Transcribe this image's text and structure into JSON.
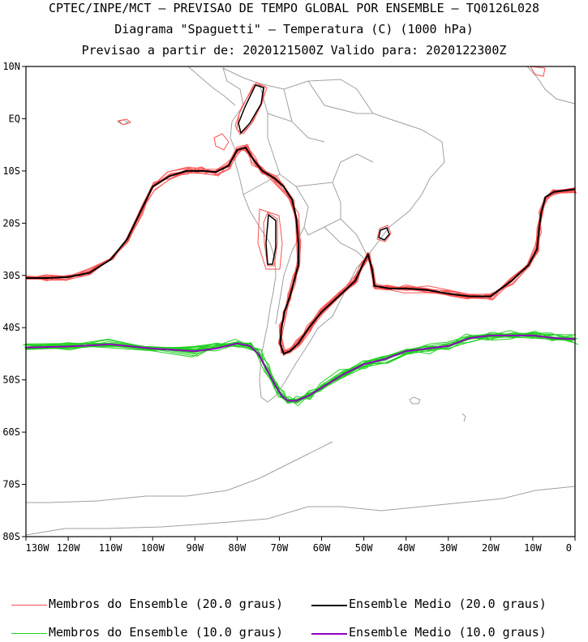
{
  "title_lines": [
    "CPTEC/INPE/MCT – PREVISAO DE TEMPO GLOBAL POR ENSEMBLE – TQ0126L028",
    "Diagrama \"Spaguetti\" – Temperatura (C) (1000 hPa)",
    "Previsao a partir de: 2020121500Z  Valido para: 2020122300Z"
  ],
  "chart_data": {
    "type": "line",
    "title": "Diagrama \"Spaguetti\" – Temperatura (C) (1000 hPa)",
    "xlabel": "",
    "ylabel": "",
    "xlim": [
      -130,
      0
    ],
    "ylim": [
      -80,
      10
    ],
    "x_ticks": [
      {
        "value": -130,
        "label": "130W"
      },
      {
        "value": -120,
        "label": "120W"
      },
      {
        "value": -110,
        "label": "110W"
      },
      {
        "value": -100,
        "label": "100W"
      },
      {
        "value": -90,
        "label": "90W"
      },
      {
        "value": -80,
        "label": "80W"
      },
      {
        "value": -70,
        "label": "70W"
      },
      {
        "value": -60,
        "label": "60W"
      },
      {
        "value": -50,
        "label": "50W"
      },
      {
        "value": -40,
        "label": "40W"
      },
      {
        "value": -30,
        "label": "30W"
      },
      {
        "value": -20,
        "label": "20W"
      },
      {
        "value": -10,
        "label": "10W"
      },
      {
        "value": 0,
        "label": "0"
      }
    ],
    "y_ticks": [
      {
        "value": 10,
        "label": "10N"
      },
      {
        "value": 0,
        "label": "EQ"
      },
      {
        "value": -10,
        "label": "10S"
      },
      {
        "value": -20,
        "label": "20S"
      },
      {
        "value": -30,
        "label": "30S"
      },
      {
        "value": -40,
        "label": "40S"
      },
      {
        "value": -50,
        "label": "50S"
      },
      {
        "value": -60,
        "label": "60S"
      },
      {
        "value": -70,
        "label": "70S"
      },
      {
        "value": -80,
        "label": "80S"
      }
    ],
    "series": [
      {
        "name": "Ensemble Medio (20.0 graus)",
        "color": "#000000",
        "points": [
          [
            -130,
            -30.5
          ],
          [
            -125,
            -30.5
          ],
          [
            -120,
            -30.3
          ],
          [
            -115,
            -29.5
          ],
          [
            -110,
            -27
          ],
          [
            -106,
            -23
          ],
          [
            -103,
            -18
          ],
          [
            -100,
            -13
          ],
          [
            -96,
            -11
          ],
          [
            -92,
            -10
          ],
          [
            -88,
            -10
          ],
          [
            -85,
            -10.2
          ],
          [
            -82,
            -9
          ],
          [
            -80,
            -6
          ],
          [
            -78,
            -5.5
          ],
          [
            -76,
            -8
          ],
          [
            -74,
            -10
          ],
          [
            -71,
            -11.5
          ],
          [
            -69,
            -13
          ],
          [
            -67,
            -15.5
          ],
          [
            -66,
            -19
          ],
          [
            -65.5,
            -24
          ],
          [
            -65.5,
            -28
          ],
          [
            -66.5,
            -31
          ],
          [
            -67.5,
            -34
          ],
          [
            -68.8,
            -37
          ],
          [
            -69.5,
            -40
          ],
          [
            -69.8,
            -43
          ],
          [
            -69,
            -45
          ],
          [
            -67.5,
            -44.5
          ],
          [
            -65.5,
            -43
          ],
          [
            -63,
            -40
          ],
          [
            -60,
            -37
          ],
          [
            -56,
            -34
          ],
          [
            -52,
            -31
          ],
          [
            -50,
            -27.5
          ],
          [
            -49,
            -26
          ],
          [
            -48,
            -29
          ],
          [
            -47.5,
            -32
          ],
          [
            -44,
            -32.5
          ],
          [
            -40,
            -32.5
          ],
          [
            -35,
            -32.8
          ],
          [
            -30,
            -33.5
          ],
          [
            -25,
            -34
          ],
          [
            -20,
            -34
          ],
          [
            -15,
            -31
          ],
          [
            -11,
            -28
          ],
          [
            -9,
            -25
          ],
          [
            -8.5,
            -21
          ],
          [
            -8,
            -18
          ],
          [
            -7,
            -15
          ],
          [
            -5,
            -14
          ],
          [
            0,
            -13.5
          ]
        ]
      },
      {
        "name": "Ensemble Medio (10.0 graus)",
        "color": "#9000c0",
        "points": [
          [
            -130,
            -43.8
          ],
          [
            -120,
            -43.6
          ],
          [
            -110,
            -43.2
          ],
          [
            -100,
            -44
          ],
          [
            -90,
            -44.5
          ],
          [
            -85,
            -44
          ],
          [
            -80,
            -43
          ],
          [
            -77,
            -43.5
          ],
          [
            -75,
            -45
          ],
          [
            -73,
            -48
          ],
          [
            -71,
            -51
          ],
          [
            -69.5,
            -53
          ],
          [
            -68,
            -54
          ],
          [
            -66,
            -54
          ],
          [
            -63,
            -53
          ],
          [
            -60,
            -51.5
          ],
          [
            -55,
            -49
          ],
          [
            -50,
            -47
          ],
          [
            -45,
            -46
          ],
          [
            -40,
            -44.5
          ],
          [
            -35,
            -44
          ],
          [
            -30,
            -43.5
          ],
          [
            -25,
            -42
          ],
          [
            -20,
            -41.5
          ],
          [
            -15,
            -41.5
          ],
          [
            -10,
            -41.5
          ],
          [
            -5,
            -42
          ],
          [
            0,
            -42.2
          ]
        ]
      }
    ],
    "legend": [
      {
        "label": "Membros do Ensemble (20.0 graus)",
        "color": "#ff5050"
      },
      {
        "label": "Ensemble Medio (20.0 graus)",
        "color": "#000000"
      },
      {
        "label": "Membros do Ensemble (10.0 graus)",
        "color": "#20d020"
      },
      {
        "label": "Ensemble Medio (10.0 graus)",
        "color": "#9000c0"
      }
    ],
    "legend_placement": "bottom"
  }
}
